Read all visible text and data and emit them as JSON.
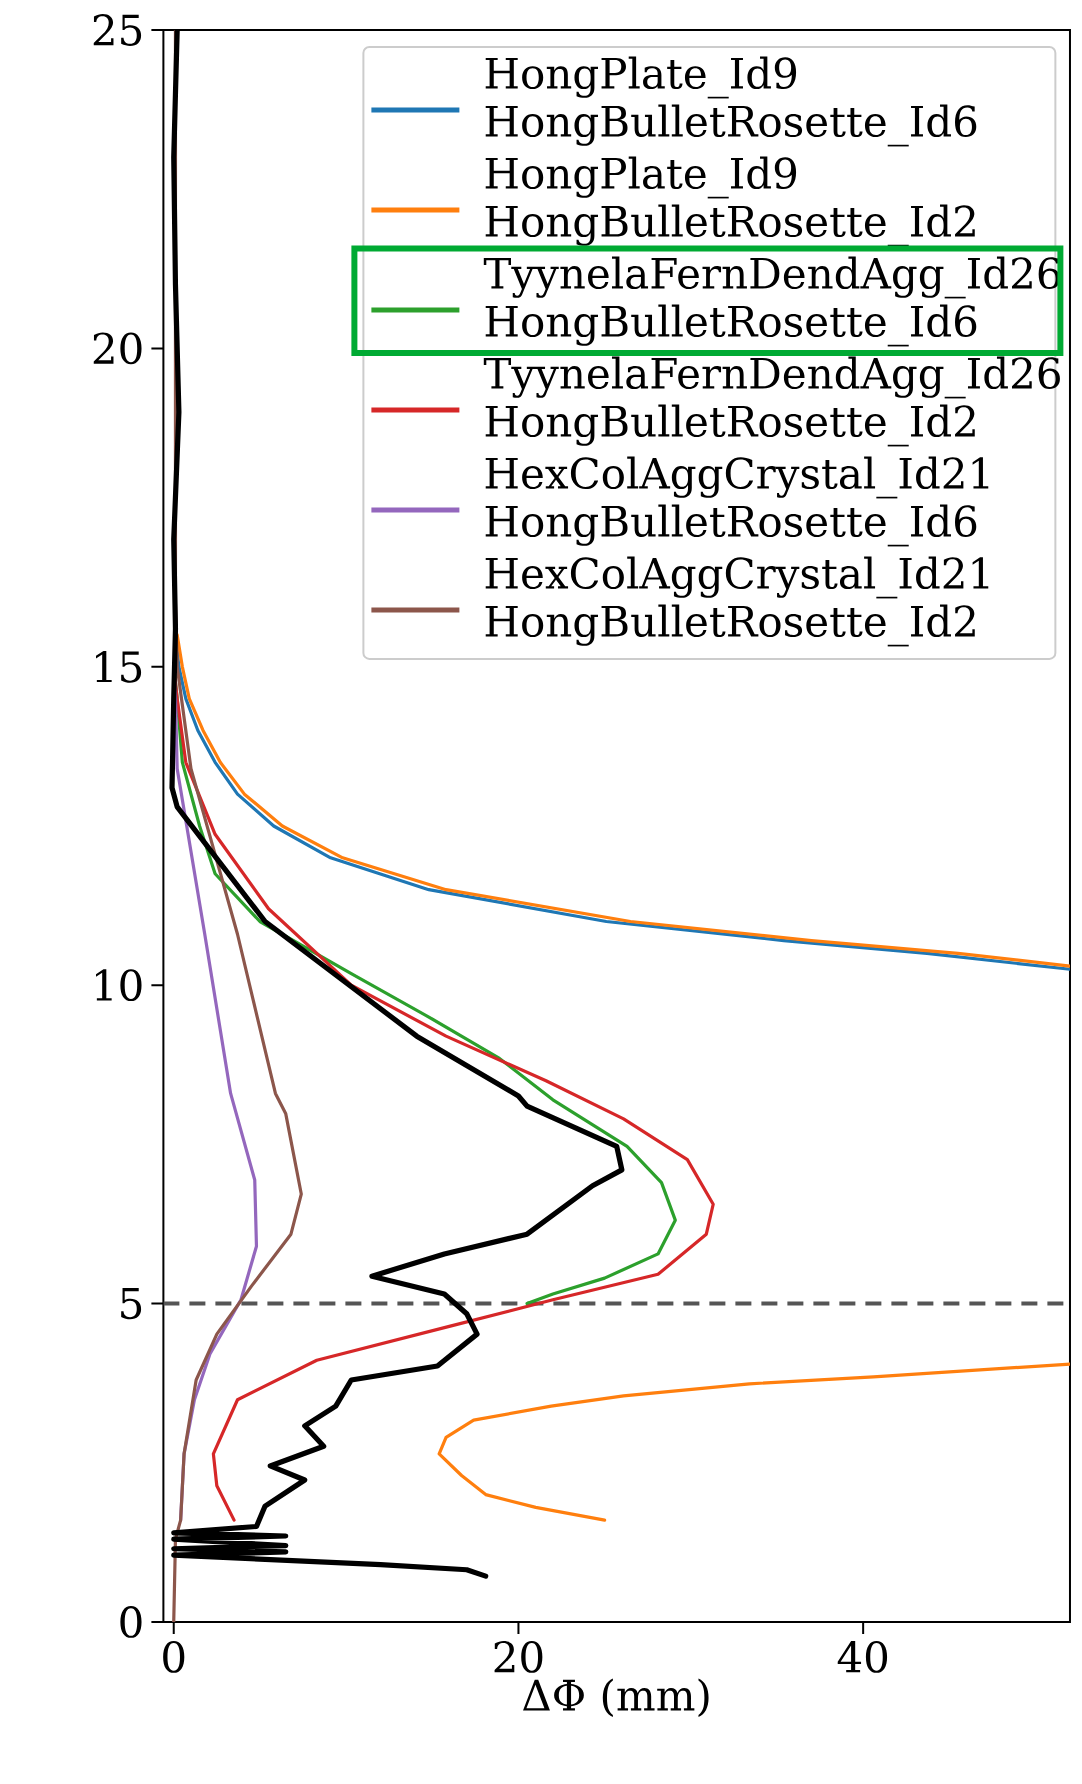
{
  "chart_data": {
    "type": "line",
    "xlabel": "ΔΦ (mm)",
    "xlim": [
      -0.6,
      52
    ],
    "ylim": [
      0,
      25
    ],
    "xticks": [
      0,
      20,
      40
    ],
    "yticks": [
      0,
      5,
      10,
      15,
      20,
      25
    ],
    "legend": "top right",
    "ref_lines": [
      {
        "axis": "y",
        "value": 5,
        "color": "#555555",
        "line_style": "dashed"
      }
    ],
    "series": [
      {
        "name": "HongPlate_Id9 HongBulletRosette_Id6",
        "color": "#1f77b4",
        "x": [
          0.1,
          0.3,
          0.7,
          1.4,
          2.4,
          3.7,
          5.8,
          9.1,
          14.8,
          25.1,
          35.4,
          43.7,
          52
        ],
        "values": [
          15.5,
          15,
          14.5,
          14,
          13.5,
          13,
          12.5,
          12,
          11.5,
          11,
          10.7,
          10.5,
          10.25
        ]
      },
      {
        "name": "HongPlate_Id9 HongBulletRosette_Id2",
        "color": "#ff7f0e",
        "x": [
          0.2,
          0.5,
          0.9,
          1.7,
          2.7,
          4.1,
          6.3,
          9.8,
          15.8,
          26.5,
          37,
          45.5,
          52,
          null,
          52,
          40.6,
          33.4,
          26.1,
          21.9,
          17.4,
          15.8,
          15.4,
          16.7,
          18.1,
          21,
          25
        ],
        "values": [
          15.5,
          15,
          14.5,
          14,
          13.5,
          13,
          12.5,
          12,
          11.5,
          11,
          10.7,
          10.5,
          10.3,
          null,
          4.05,
          3.85,
          3.74,
          3.55,
          3.39,
          3.17,
          2.9,
          2.64,
          2.3,
          2.0,
          1.8,
          1.6
        ]
      },
      {
        "name": "TyynelaFernDendAgg_Id26 HongBulletRosette_Id6",
        "color": "#2ca02c",
        "x": [
          0.0,
          0.2,
          0.5,
          1.5,
          2.4,
          5.0,
          10.3,
          14.8,
          18.9,
          22,
          26.3,
          28.3,
          29.1,
          28.1,
          25,
          22,
          20.5
        ],
        "values": [
          15,
          14.5,
          13.5,
          12.5,
          11.75,
          11,
          10.18,
          9.5,
          8.85,
          8.2,
          7.47,
          6.9,
          6.31,
          5.78,
          5.4,
          5.15,
          5.0
        ]
      },
      {
        "name": "TyynelaFernDendAgg_Id26 HongBulletRosette_Id2",
        "color": "#d62728",
        "x": [
          0.0,
          0.2,
          0.7,
          2.4,
          5.5,
          10.3,
          15.8,
          21.6,
          26.1,
          29.8,
          31.3,
          30.9,
          28.1,
          22,
          16.1,
          8.3,
          3.7,
          2.3,
          2.5,
          3.5
        ],
        "values": [
          15,
          14.5,
          13.5,
          12.37,
          11.2,
          10,
          9.2,
          8.5,
          7.9,
          7.26,
          6.56,
          6.09,
          5.46,
          5.06,
          4.65,
          4.11,
          3.49,
          2.64,
          2.14,
          1.6
        ]
      },
      {
        "name": "HexColAggCrystal_Id21 HongBulletRosette_Id6",
        "color": "#9467bd",
        "x": [
          0.0,
          0.1,
          0.2,
          1.8,
          3.3,
          4.7,
          4.8,
          3.9,
          2.1,
          1.2,
          0.6,
          0.4
        ],
        "values": [
          15,
          14.5,
          13.4,
          10.8,
          8.3,
          6.94,
          5.9,
          5.06,
          4.21,
          3.49,
          2.64,
          1.6
        ]
      },
      {
        "name": "HexColAggCrystal_Id21 HongBulletRosette_Id2",
        "color": "#8c564b",
        "x": [
          0.1,
          0.1,
          0.2,
          1.0,
          3.7,
          5.9,
          6.5,
          7.4,
          6.8,
          4.5,
          2.5,
          1.3,
          0.6,
          0.4,
          0.1,
          0.0
        ],
        "values": [
          25,
          16,
          15,
          13.4,
          10.8,
          8.3,
          7.98,
          6.72,
          6.09,
          5.27,
          4.52,
          3.8,
          2.64,
          1.6,
          1.3,
          0
        ]
      },
      {
        "color": "#000000",
        "x": [
          0.2,
          0.0,
          0.1,
          0.3,
          0.0,
          0.1,
          0.0,
          -0.1,
          0.2,
          5.3,
          14.1,
          20,
          20.5,
          25.7,
          26.0,
          24.3,
          20.5,
          15.7,
          11.5,
          15.7,
          17,
          17.6,
          15.3,
          10.3,
          9.4,
          7.6,
          8.7,
          5.6,
          7.6,
          5.3,
          4.8,
          0,
          6.5,
          0,
          6.5,
          0,
          6.5,
          0,
          12,
          17,
          18.1
        ],
        "values": [
          25,
          23,
          21,
          19,
          17,
          15.6,
          14.5,
          13.1,
          12.8,
          11.0,
          9.2,
          8.26,
          8.1,
          7.47,
          7.1,
          6.85,
          6.09,
          5.78,
          5.43,
          5.15,
          4.84,
          4.52,
          4.02,
          3.8,
          3.39,
          3.08,
          2.76,
          2.45,
          2.23,
          1.82,
          1.5,
          1.4,
          1.35,
          1.3,
          1.2,
          1.15,
          1.1,
          1.05,
          0.9,
          0.82,
          0.72
        ]
      }
    ]
  }
}
